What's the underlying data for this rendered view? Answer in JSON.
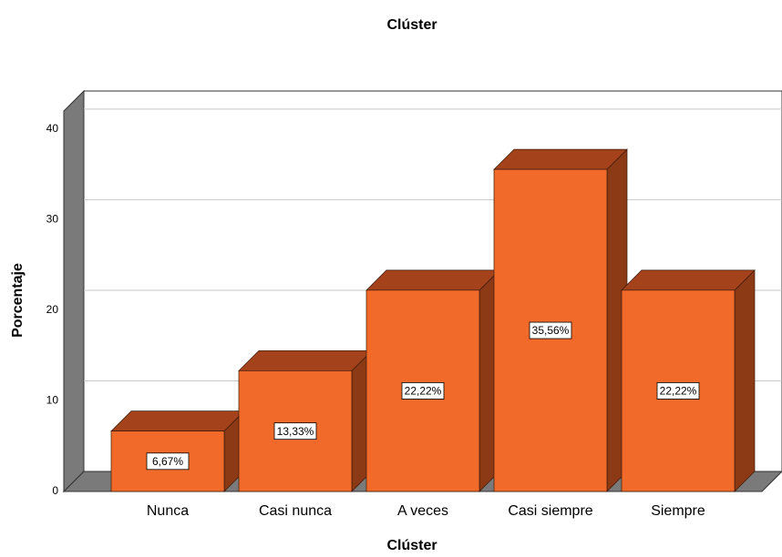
{
  "chart_data": {
    "type": "bar3d",
    "title": "Clúster",
    "x_label": "Clúster",
    "y_label": "Porcentaje",
    "categories": [
      "Nunca",
      "Casi nunca",
      "A veces",
      "Casi siempre",
      "Siempre"
    ],
    "values": [
      6.67,
      13.33,
      22.22,
      35.56,
      22.22
    ],
    "value_labels": [
      "6,67%",
      "13,33%",
      "22,22%",
      "35,56%",
      "22,22%"
    ],
    "color": "#f26a2a",
    "top_color": "#a3421b",
    "side_color": "#8c3915",
    "ylim": [
      0,
      42
    ],
    "yticks": [
      0,
      10,
      20,
      30,
      40
    ],
    "grid": true
  }
}
